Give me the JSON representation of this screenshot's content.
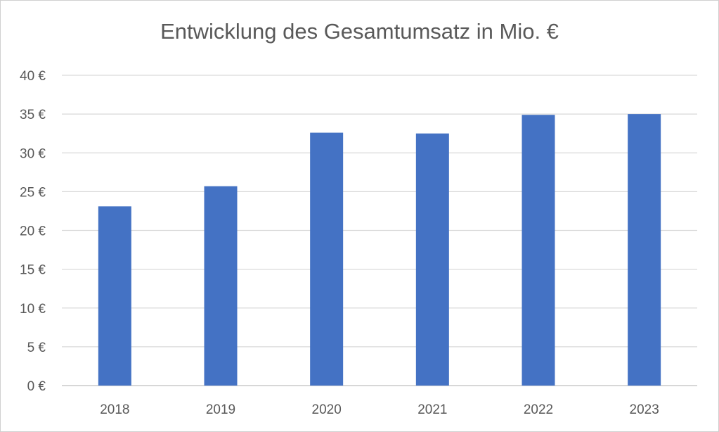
{
  "chart_data": {
    "type": "bar",
    "title": "Entwicklung des Gesamtumsatz in Mio. €",
    "categories": [
      "2018",
      "2019",
      "2020",
      "2021",
      "2022",
      "2023"
    ],
    "values": [
      23.1,
      25.7,
      32.6,
      32.5,
      34.9,
      35.0
    ],
    "xlabel": "",
    "ylabel": "",
    "ylim": [
      0,
      40
    ],
    "y_ticks": [
      "0 €",
      "5 €",
      "10 €",
      "15 €",
      "20 €",
      "25 €",
      "30 €",
      "35 €",
      "40 €"
    ],
    "grid": true,
    "legend": "none",
    "bar_color": "#4472C4"
  }
}
